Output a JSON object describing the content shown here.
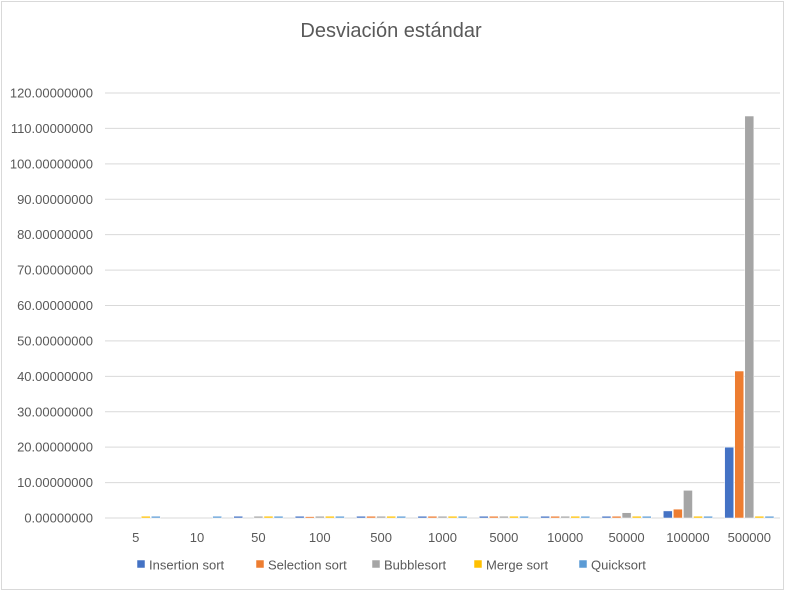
{
  "chart_data": {
    "type": "bar",
    "title": "Desviación estándar",
    "xlabel": "",
    "ylabel": "",
    "ylim": [
      0,
      120
    ],
    "yticks": [
      "0.00000000",
      "10.00000000",
      "20.00000000",
      "30.00000000",
      "40.00000000",
      "50.00000000",
      "60.00000000",
      "70.00000000",
      "80.00000000",
      "90.00000000",
      "100.00000000",
      "110.00000000",
      "120.00000000"
    ],
    "categories": [
      "5",
      "10",
      "50",
      "100",
      "500",
      "1000",
      "5000",
      "10000",
      "50000",
      "100000",
      "500000"
    ],
    "series": [
      {
        "name": "Insertion sort",
        "color": "#4472C4",
        "values": [
          0,
          0,
          0.5,
          0.5,
          0.5,
          0.5,
          0.5,
          0.5,
          0.5,
          2.0,
          20.0
        ]
      },
      {
        "name": "Selection sort",
        "color": "#ED7D31",
        "values": [
          0,
          0,
          0,
          0.4,
          0.5,
          0.5,
          0.5,
          0.5,
          0.5,
          2.5,
          41.5
        ]
      },
      {
        "name": "Bubblesort",
        "color": "#A5A5A5",
        "values": [
          0,
          0,
          0.5,
          0.5,
          0.5,
          0.5,
          0.5,
          0.5,
          1.5,
          7.8,
          113.5
        ]
      },
      {
        "name": "Merge sort",
        "color": "#FFC000",
        "values": [
          0.5,
          0,
          0.5,
          0.5,
          0.5,
          0.5,
          0.5,
          0.5,
          0.5,
          0.5,
          0.5
        ]
      },
      {
        "name": "Quicksort",
        "color": "#5B9BD5",
        "values": [
          0.5,
          0.5,
          0.5,
          0.5,
          0.5,
          0.5,
          0.5,
          0.5,
          0.5,
          0.5,
          0.5
        ]
      }
    ],
    "grid": true,
    "legend": "bottom"
  }
}
